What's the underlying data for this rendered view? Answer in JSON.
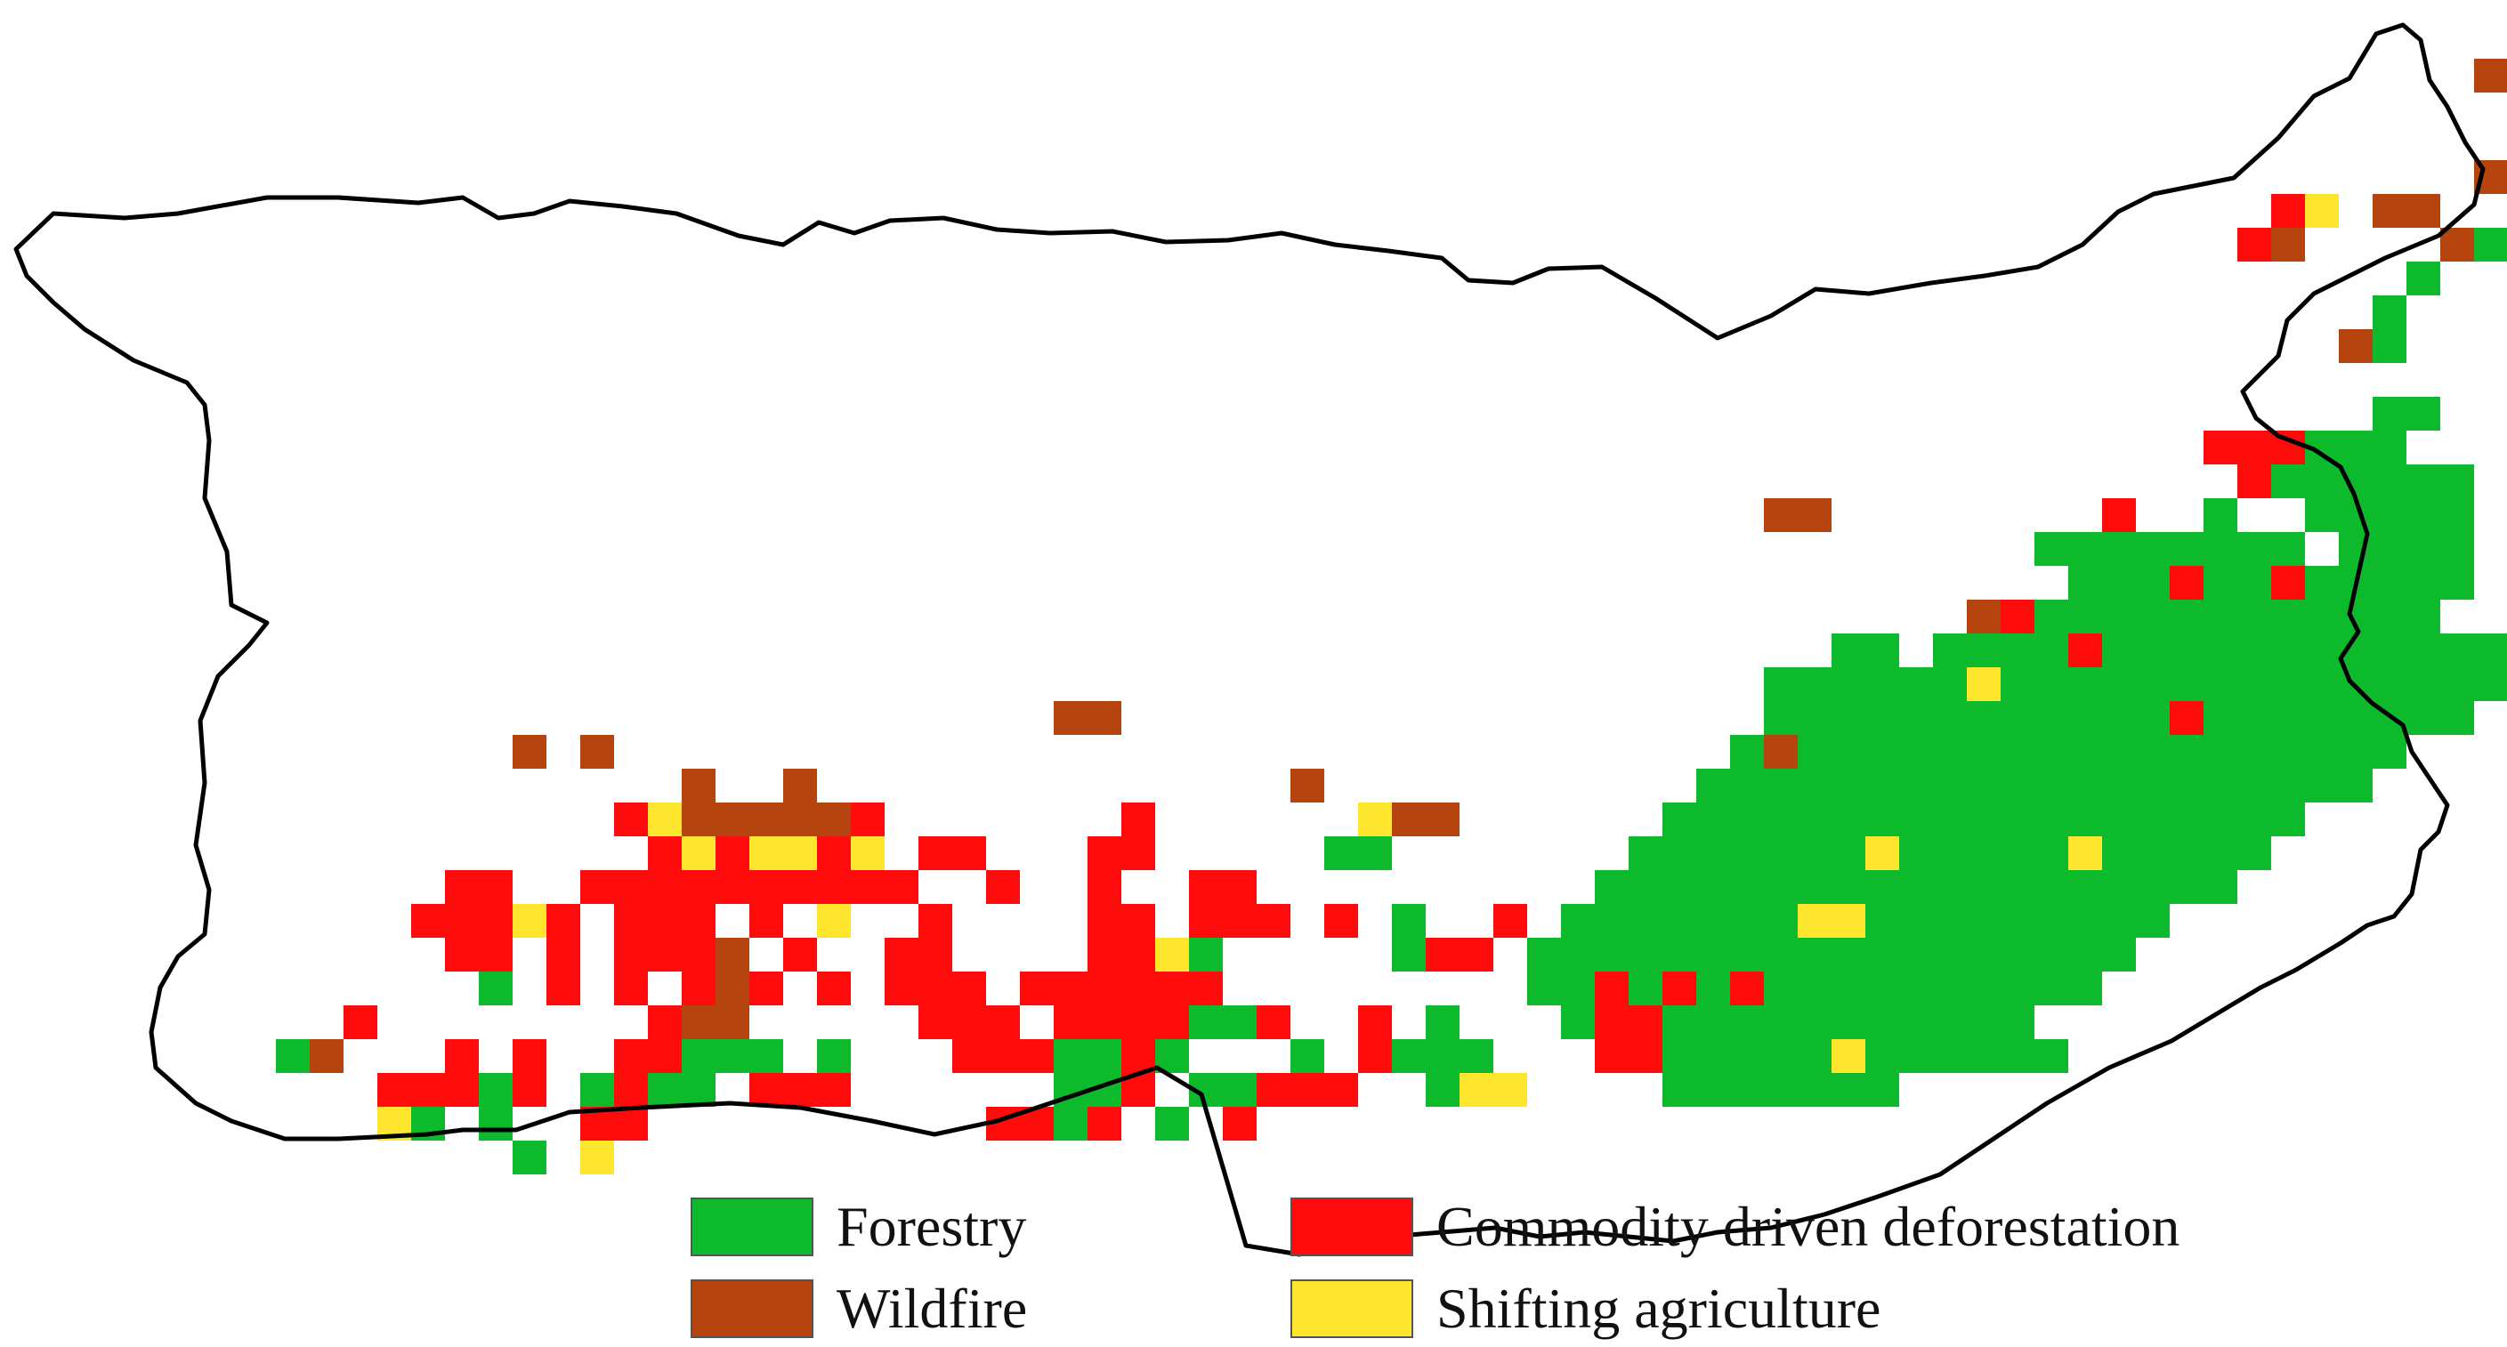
{
  "legend": {
    "forestry": {
      "label": "Forestry",
      "color": "#0DBA2C"
    },
    "wildfire": {
      "label": "Wildfire",
      "color": "#B5440F"
    },
    "commodity": {
      "label": "Commodity driven deforestation",
      "color": "#FF0B0B"
    },
    "shifting": {
      "label": "Shifting agriculture",
      "color": "#FFE62E"
    }
  },
  "map": {
    "outline_color": "#000000"
  }
}
